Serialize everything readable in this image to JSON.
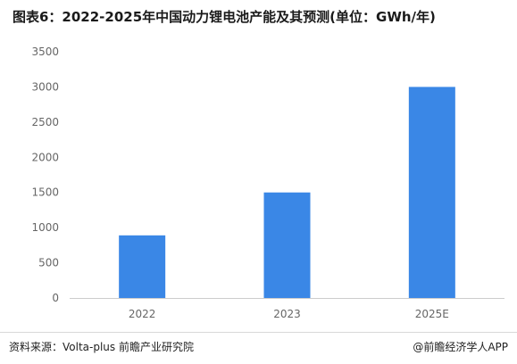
{
  "title": "图表6：2022-2025年中国动力锂电池产能及其预测(单位：GWh/年)",
  "footer": {
    "source": "资料来源：Volta-plus 前瞻产业研究院",
    "credit": "@前瞻经济学人APP"
  },
  "colors": {
    "bar": "#3a87e6",
    "axis_text": "#666666",
    "baseline": "#cccccc"
  },
  "chart_data": {
    "type": "bar",
    "categories": [
      "2022",
      "2023",
      "2025E"
    ],
    "values": [
      890,
      1500,
      3000
    ],
    "ylim": [
      0,
      3500
    ],
    "yticks": [
      "0",
      "500",
      "1000",
      "1500",
      "2000",
      "2500",
      "3000",
      "3500"
    ],
    "grid": false,
    "legend": "none"
  }
}
